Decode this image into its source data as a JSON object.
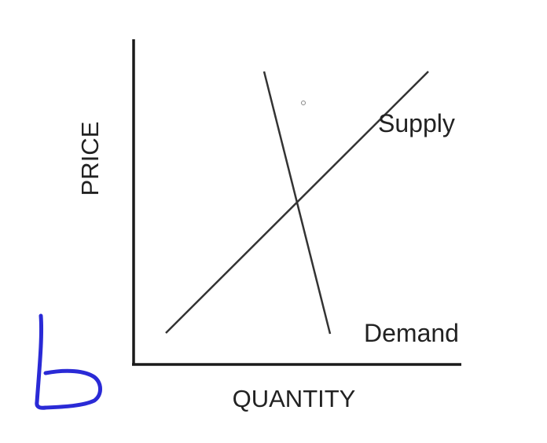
{
  "diagram": {
    "y_axis_label": "PRICE",
    "x_axis_label": "QUANTITY",
    "supply_label": "Supply",
    "demand_label": "Demand",
    "annotation_mark": "b"
  },
  "colors": {
    "axis": "#1a1a1a",
    "curve": "#333333",
    "text": "#222222",
    "handwriting": "#2a2ad6"
  }
}
